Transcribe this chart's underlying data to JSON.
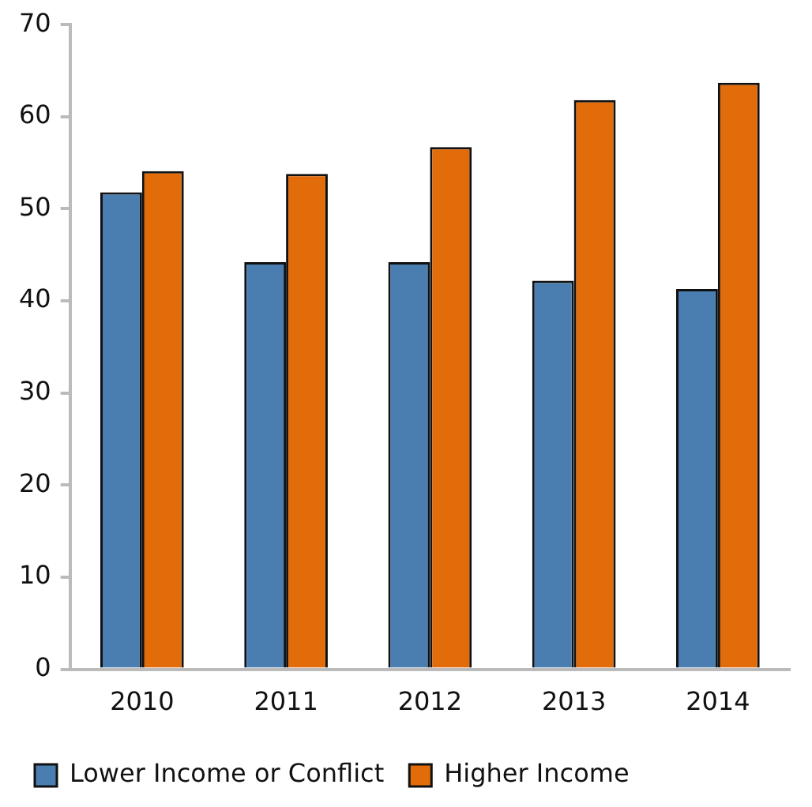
{
  "chart_data": {
    "type": "bar",
    "categories": [
      "2010",
      "2011",
      "2012",
      "2013",
      "2014"
    ],
    "series": [
      {
        "name": "Lower Income or Conflict",
        "color": "#4a7eb0",
        "values": [
          51.8,
          44.2,
          44.2,
          42.2,
          41.3
        ]
      },
      {
        "name": "Higher Income",
        "color": "#e36c0a",
        "values": [
          54.1,
          53.8,
          56.7,
          61.8,
          63.7
        ]
      }
    ],
    "ylim": [
      0,
      70
    ],
    "yticks": [
      0,
      10,
      20,
      30,
      40,
      50,
      60,
      70
    ],
    "grid": false,
    "legend": "bottom"
  }
}
